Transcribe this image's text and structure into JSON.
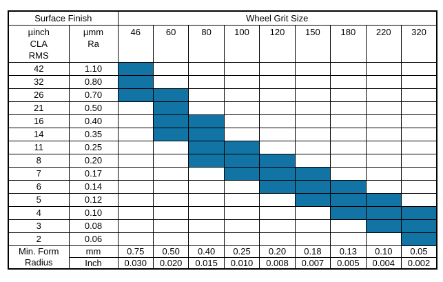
{
  "table": {
    "header": {
      "surface_finish_label": "Surface Finish",
      "wheel_grit_label": "Wheel Grit Size",
      "uinch_lines": [
        "µinch",
        "CLA",
        "RMS"
      ],
      "umm_lines": [
        "µmm",
        "Ra"
      ],
      "grit_sizes": [
        "46",
        "60",
        "80",
        "100",
        "120",
        "150",
        "180",
        "220",
        "320"
      ]
    },
    "rows": [
      {
        "uinch": "42",
        "umm": "1.10",
        "filled_grits": [
          "46"
        ]
      },
      {
        "uinch": "32",
        "umm": "0.80",
        "filled_grits": [
          "46"
        ]
      },
      {
        "uinch": "26",
        "umm": "0.70",
        "filled_grits": [
          "46",
          "60"
        ]
      },
      {
        "uinch": "21",
        "umm": "0.50",
        "filled_grits": [
          "60"
        ]
      },
      {
        "uinch": "16",
        "umm": "0.40",
        "filled_grits": [
          "60",
          "80"
        ]
      },
      {
        "uinch": "14",
        "umm": "0.35",
        "filled_grits": [
          "60",
          "80"
        ]
      },
      {
        "uinch": "11",
        "umm": "0.25",
        "filled_grits": [
          "80",
          "100"
        ]
      },
      {
        "uinch": "8",
        "umm": "0.20",
        "filled_grits": [
          "80",
          "100",
          "120"
        ]
      },
      {
        "uinch": "7",
        "umm": "0.17",
        "filled_grits": [
          "100",
          "120",
          "150"
        ]
      },
      {
        "uinch": "6",
        "umm": "0.14",
        "filled_grits": [
          "120",
          "150",
          "180"
        ]
      },
      {
        "uinch": "5",
        "umm": "0.12",
        "filled_grits": [
          "150",
          "180",
          "220"
        ]
      },
      {
        "uinch": "4",
        "umm": "0.10",
        "filled_grits": [
          "180",
          "220",
          "320"
        ]
      },
      {
        "uinch": "3",
        "umm": "0.08",
        "filled_grits": [
          "220",
          "320"
        ]
      },
      {
        "uinch": "2",
        "umm": "0.06",
        "filled_grits": [
          "320"
        ]
      }
    ],
    "footer": {
      "label_lines": [
        "Min. Form",
        "Radius"
      ],
      "rows": [
        {
          "unit": "mm",
          "values": [
            "0.75",
            "0.50",
            "0.40",
            "0.25",
            "0.20",
            "0.18",
            "0.13",
            "0.10",
            "0.05"
          ]
        },
        {
          "unit": "Inch",
          "values": [
            "0.030",
            "0.020",
            "0.015",
            "0.010",
            "0.008",
            "0.007",
            "0.005",
            "0.004",
            "0.002"
          ]
        }
      ]
    },
    "colors": {
      "fill": "#1174A5",
      "border": "#000000"
    }
  },
  "chart_data": {
    "type": "heatmap",
    "title": "Wheel Grit Size",
    "y_label": "Surface Finish",
    "x_categories": [
      46,
      60,
      80,
      100,
      120,
      150,
      180,
      220,
      320
    ],
    "series": [
      {
        "surface_finish_uinch_cla_rms": 42,
        "surface_finish_umm_ra": 1.1,
        "recommended_grits": [
          46
        ]
      },
      {
        "surface_finish_uinch_cla_rms": 32,
        "surface_finish_umm_ra": 0.8,
        "recommended_grits": [
          46
        ]
      },
      {
        "surface_finish_uinch_cla_rms": 26,
        "surface_finish_umm_ra": 0.7,
        "recommended_grits": [
          46,
          60
        ]
      },
      {
        "surface_finish_uinch_cla_rms": 21,
        "surface_finish_umm_ra": 0.5,
        "recommended_grits": [
          60
        ]
      },
      {
        "surface_finish_uinch_cla_rms": 16,
        "surface_finish_umm_ra": 0.4,
        "recommended_grits": [
          60,
          80
        ]
      },
      {
        "surface_finish_uinch_cla_rms": 14,
        "surface_finish_umm_ra": 0.35,
        "recommended_grits": [
          60,
          80
        ]
      },
      {
        "surface_finish_uinch_cla_rms": 11,
        "surface_finish_umm_ra": 0.25,
        "recommended_grits": [
          80,
          100
        ]
      },
      {
        "surface_finish_uinch_cla_rms": 8,
        "surface_finish_umm_ra": 0.2,
        "recommended_grits": [
          80,
          100,
          120
        ]
      },
      {
        "surface_finish_uinch_cla_rms": 7,
        "surface_finish_umm_ra": 0.17,
        "recommended_grits": [
          100,
          120,
          150
        ]
      },
      {
        "surface_finish_uinch_cla_rms": 6,
        "surface_finish_umm_ra": 0.14,
        "recommended_grits": [
          120,
          150,
          180
        ]
      },
      {
        "surface_finish_uinch_cla_rms": 5,
        "surface_finish_umm_ra": 0.12,
        "recommended_grits": [
          150,
          180,
          220
        ]
      },
      {
        "surface_finish_uinch_cla_rms": 4,
        "surface_finish_umm_ra": 0.1,
        "recommended_grits": [
          180,
          220,
          320
        ]
      },
      {
        "surface_finish_uinch_cla_rms": 3,
        "surface_finish_umm_ra": 0.08,
        "recommended_grits": [
          220,
          320
        ]
      },
      {
        "surface_finish_uinch_cla_rms": 2,
        "surface_finish_umm_ra": 0.06,
        "recommended_grits": [
          320
        ]
      }
    ],
    "min_form_radius": {
      "mm": [
        0.75,
        0.5,
        0.4,
        0.25,
        0.2,
        0.18,
        0.13,
        0.1,
        0.05
      ],
      "inch": [
        0.03,
        0.02,
        0.015,
        0.01,
        0.008,
        0.007,
        0.005,
        0.004,
        0.002
      ]
    },
    "fill_color": "#1174A5",
    "grid": true,
    "legend": false
  }
}
